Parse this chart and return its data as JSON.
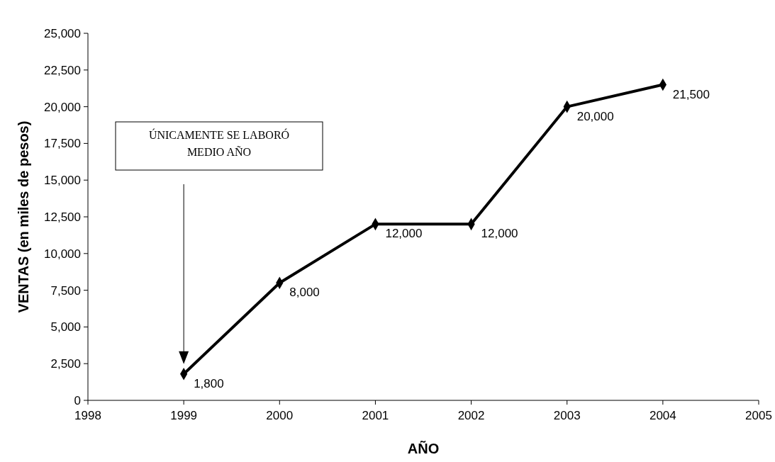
{
  "chart_data": {
    "type": "line",
    "xlabel": "AÑO",
    "ylabel": "VENTAS (en miles de pesos)",
    "x": [
      1999,
      2000,
      2001,
      2002,
      2003,
      2004
    ],
    "series": [
      {
        "color": "#000000",
        "values": [
          1800,
          8000,
          12000,
          12000,
          20000,
          21500
        ],
        "value_labels": [
          "1,800",
          "8,000",
          "12,000",
          "12,000",
          "20,000",
          "21,500"
        ]
      }
    ],
    "xlim": [
      1998,
      2005
    ],
    "xticks": [
      1998,
      1999,
      2000,
      2001,
      2002,
      2003,
      2004,
      2005
    ],
    "ylim": [
      0,
      25000
    ],
    "yticks": [
      0,
      {
        "value": 2500,
        "label": "2,500"
      },
      {
        "value": 5000,
        "label": "5,000"
      },
      {
        "value": 7500,
        "label": "7,500"
      },
      {
        "value": 10000,
        "label": "10,000"
      },
      {
        "value": 12500,
        "label": "12,500"
      },
      {
        "value": 15000,
        "label": "15,000"
      },
      {
        "value": 17500,
        "label": "17,500"
      },
      {
        "value": 20000,
        "label": "20,000"
      },
      {
        "value": 22500,
        "label": "22,500"
      },
      {
        "value": 25000,
        "label": "25,000"
      }
    ],
    "marker": "diamond",
    "line_style": "solid",
    "grid": false,
    "annotations": [
      "ÚNICAMENTE SE LABORÓ\nMEDIO AÑO"
    ]
  }
}
